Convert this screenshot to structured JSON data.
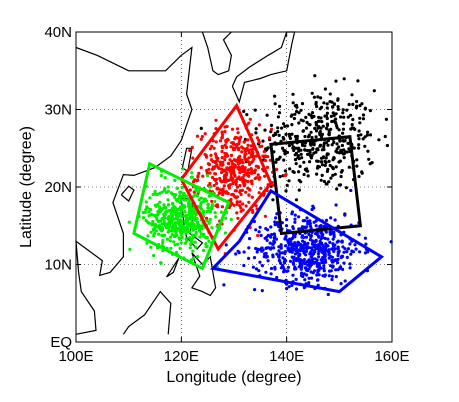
{
  "chart_data": {
    "type": "scatter",
    "title": "",
    "xlabel": "Longitude (degree)",
    "ylabel": "Latitude (degree)",
    "xlim": [
      100,
      160
    ],
    "ylim": [
      0,
      40
    ],
    "x_ticks": [
      100,
      120,
      140,
      160
    ],
    "x_tick_labels": [
      "100E",
      "120E",
      "140E",
      "160E"
    ],
    "y_ticks": [
      0,
      10,
      20,
      30,
      40
    ],
    "y_tick_labels": [
      "EQ",
      "10N",
      "20N",
      "30N",
      "40N"
    ],
    "grid": "dotted",
    "colors": {
      "black": "#000000",
      "red": "#ff0000",
      "green": "#00ee00",
      "blue": "#0000ff"
    },
    "series": [
      {
        "color": "#000000",
        "cluster_center": [
          146,
          26
        ],
        "cluster_spread": [
          10,
          6
        ],
        "point_count": 420,
        "region_polygon": [
          [
            137,
            25.5
          ],
          [
            152,
            26.5
          ],
          [
            154,
            15
          ],
          [
            139,
            14
          ]
        ]
      },
      {
        "color": "#ff0000",
        "cluster_center": [
          130,
          22
        ],
        "cluster_spread": [
          6,
          5
        ],
        "point_count": 430,
        "region_polygon": [
          [
            120,
            21
          ],
          [
            130.5,
            30.5
          ],
          [
            137,
            20.5
          ],
          [
            127,
            12
          ]
        ]
      },
      {
        "color": "#0000ff",
        "cluster_center": [
          144,
          12
        ],
        "cluster_spread": [
          9,
          4
        ],
        "point_count": 560,
        "region_polygon": [
          [
            131,
            13
          ],
          [
            137,
            19.5
          ],
          [
            158,
            11
          ],
          [
            150,
            6.5
          ],
          [
            126,
            9.5
          ]
        ]
      },
      {
        "color": "#00ee00",
        "cluster_center": [
          120,
          16
        ],
        "cluster_spread": [
          6,
          4
        ],
        "point_count": 520,
        "region_polygon": [
          [
            114,
            23
          ],
          [
            129,
            18
          ],
          [
            124,
            9.5
          ],
          [
            111,
            14
          ]
        ]
      }
    ]
  }
}
